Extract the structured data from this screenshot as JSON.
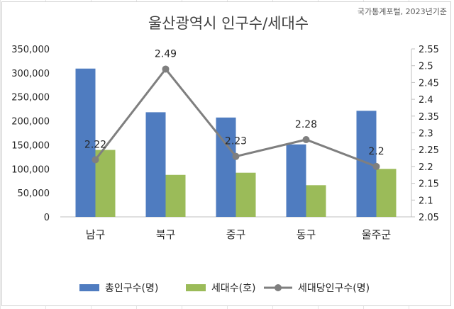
{
  "source_note": "국가통계포털, 2023년기준",
  "colors": {
    "population": "#4f7cc0",
    "households": "#9bbb59",
    "ratio": "#7f7f7f"
  },
  "chart_data": {
    "type": "bar",
    "title": "울산광역시 인구수/세대수",
    "categories": [
      "남구",
      "북구",
      "중구",
      "동구",
      "울주군"
    ],
    "series": [
      {
        "name": "총인구수(명)",
        "type": "bar",
        "axis": "left",
        "values": [
          309000,
          218000,
          207000,
          151000,
          221000
        ]
      },
      {
        "name": "세대수(호)",
        "type": "bar",
        "axis": "left",
        "values": [
          139500,
          87500,
          92000,
          66000,
          100000
        ]
      },
      {
        "name": "세대당인구수(명)",
        "type": "line",
        "axis": "right",
        "values": [
          2.22,
          2.49,
          2.23,
          2.28,
          2.2
        ],
        "labels": [
          "2.22",
          "2.49",
          "2.23",
          "2.28",
          "2.2"
        ]
      }
    ],
    "y_left": {
      "min": 0,
      "max": 350000,
      "ticks": [
        "0",
        "50,000",
        "100,000",
        "150,000",
        "200,000",
        "250,000",
        "300,000",
        "350,000"
      ]
    },
    "y_right": {
      "min": 2.05,
      "max": 2.55,
      "ticks": [
        "2.05",
        "2.1",
        "2.15",
        "2.2",
        "2.25",
        "2.3",
        "2.35",
        "2.4",
        "2.45",
        "2.5",
        "2.55"
      ]
    },
    "legend_position": "bottom",
    "grid": false
  }
}
